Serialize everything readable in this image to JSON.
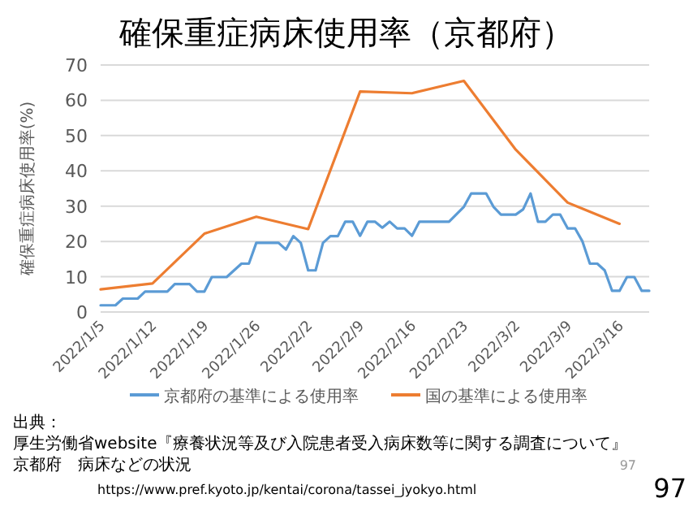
{
  "chart_data": {
    "type": "line",
    "title": "確保重症病床使用率（京都府）",
    "ylabel": "確保重症病床使用率(%)",
    "xlim": [
      "2022-01-05",
      "2022-03-20"
    ],
    "xticks": [
      {
        "value": "2022-01-05",
        "label": "2022/1/5"
      },
      {
        "value": "2022-01-12",
        "label": "2022/1/12"
      },
      {
        "value": "2022-01-19",
        "label": "2022/1/19"
      },
      {
        "value": "2022-01-26",
        "label": "2022/1/26"
      },
      {
        "value": "2022-02-02",
        "label": "2022/2/2"
      },
      {
        "value": "2022-02-09",
        "label": "2022/2/9"
      },
      {
        "value": "2022-02-16",
        "label": "2022/2/16"
      },
      {
        "value": "2022-02-23",
        "label": "2022/2/23"
      },
      {
        "value": "2022-03-02",
        "label": "2022/3/2"
      },
      {
        "value": "2022-03-09",
        "label": "2022/3/9"
      },
      {
        "value": "2022-03-16",
        "label": "2022/3/16"
      }
    ],
    "ylim": [
      0,
      70
    ],
    "yticks": [
      0,
      10,
      20,
      30,
      40,
      50,
      60,
      70
    ],
    "grid": "y",
    "legend": "bottom",
    "series": [
      {
        "name": "京都府の基準による使用率",
        "color": "#5b9bd5",
        "x": [
          "2022-01-05",
          "2022-01-07",
          "2022-01-08",
          "2022-01-10",
          "2022-01-11",
          "2022-01-14",
          "2022-01-15",
          "2022-01-17",
          "2022-01-18",
          "2022-01-19",
          "2022-01-20",
          "2022-01-22",
          "2022-01-24",
          "2022-01-25",
          "2022-01-26",
          "2022-01-29",
          "2022-01-30",
          "2022-01-31",
          "2022-02-01",
          "2022-02-02",
          "2022-02-03",
          "2022-02-04",
          "2022-02-05",
          "2022-02-06",
          "2022-02-07",
          "2022-02-08",
          "2022-02-09",
          "2022-02-10",
          "2022-02-11",
          "2022-02-12",
          "2022-02-13",
          "2022-02-14",
          "2022-02-15",
          "2022-02-16",
          "2022-02-17",
          "2022-02-21",
          "2022-02-23",
          "2022-02-24",
          "2022-02-26",
          "2022-02-27",
          "2022-02-28",
          "2022-03-02",
          "2022-03-03",
          "2022-03-04",
          "2022-03-05",
          "2022-03-06",
          "2022-03-07",
          "2022-03-08",
          "2022-03-09",
          "2022-03-10",
          "2022-03-11",
          "2022-03-12",
          "2022-03-13",
          "2022-03-14",
          "2022-03-15",
          "2022-03-16",
          "2022-03-17",
          "2022-03-18",
          "2022-03-19",
          "2022-03-20"
        ],
        "values": [
          1.9,
          1.9,
          3.8,
          3.8,
          5.8,
          5.8,
          7.9,
          7.9,
          5.8,
          5.8,
          9.9,
          9.9,
          13.7,
          13.7,
          19.6,
          19.6,
          17.7,
          21.5,
          19.6,
          11.8,
          11.8,
          19.6,
          21.5,
          21.5,
          25.6,
          25.6,
          21.6,
          25.6,
          25.6,
          23.9,
          25.6,
          23.7,
          23.7,
          21.6,
          25.6,
          25.6,
          29.8,
          33.6,
          33.6,
          29.8,
          27.6,
          27.6,
          29.1,
          33.6,
          25.6,
          25.6,
          27.6,
          27.6,
          23.7,
          23.7,
          20,
          13.7,
          13.7,
          11.8,
          6,
          6,
          9.9,
          9.9,
          6,
          6
        ]
      },
      {
        "name": "国の基準による使用率",
        "color": "#ed7d31",
        "x": [
          "2022-01-05",
          "2022-01-12",
          "2022-01-19",
          "2022-01-26",
          "2022-02-02",
          "2022-02-09",
          "2022-02-16",
          "2022-02-23",
          "2022-03-02",
          "2022-03-09",
          "2022-03-16"
        ],
        "values": [
          6.4,
          8.1,
          22.2,
          27,
          23.5,
          62.5,
          62,
          65.5,
          46,
          31,
          25
        ]
      }
    ],
    "annotations": [
      "出典：",
      "厚生労働省website『療養状況等及び入院患者受入病床数等に関する調査について』",
      "京都府　病床などの状況",
      "97",
      "https://www.pref.kyoto.jp/kentai/corona/tassei_jyokyo.html",
      "97"
    ]
  }
}
